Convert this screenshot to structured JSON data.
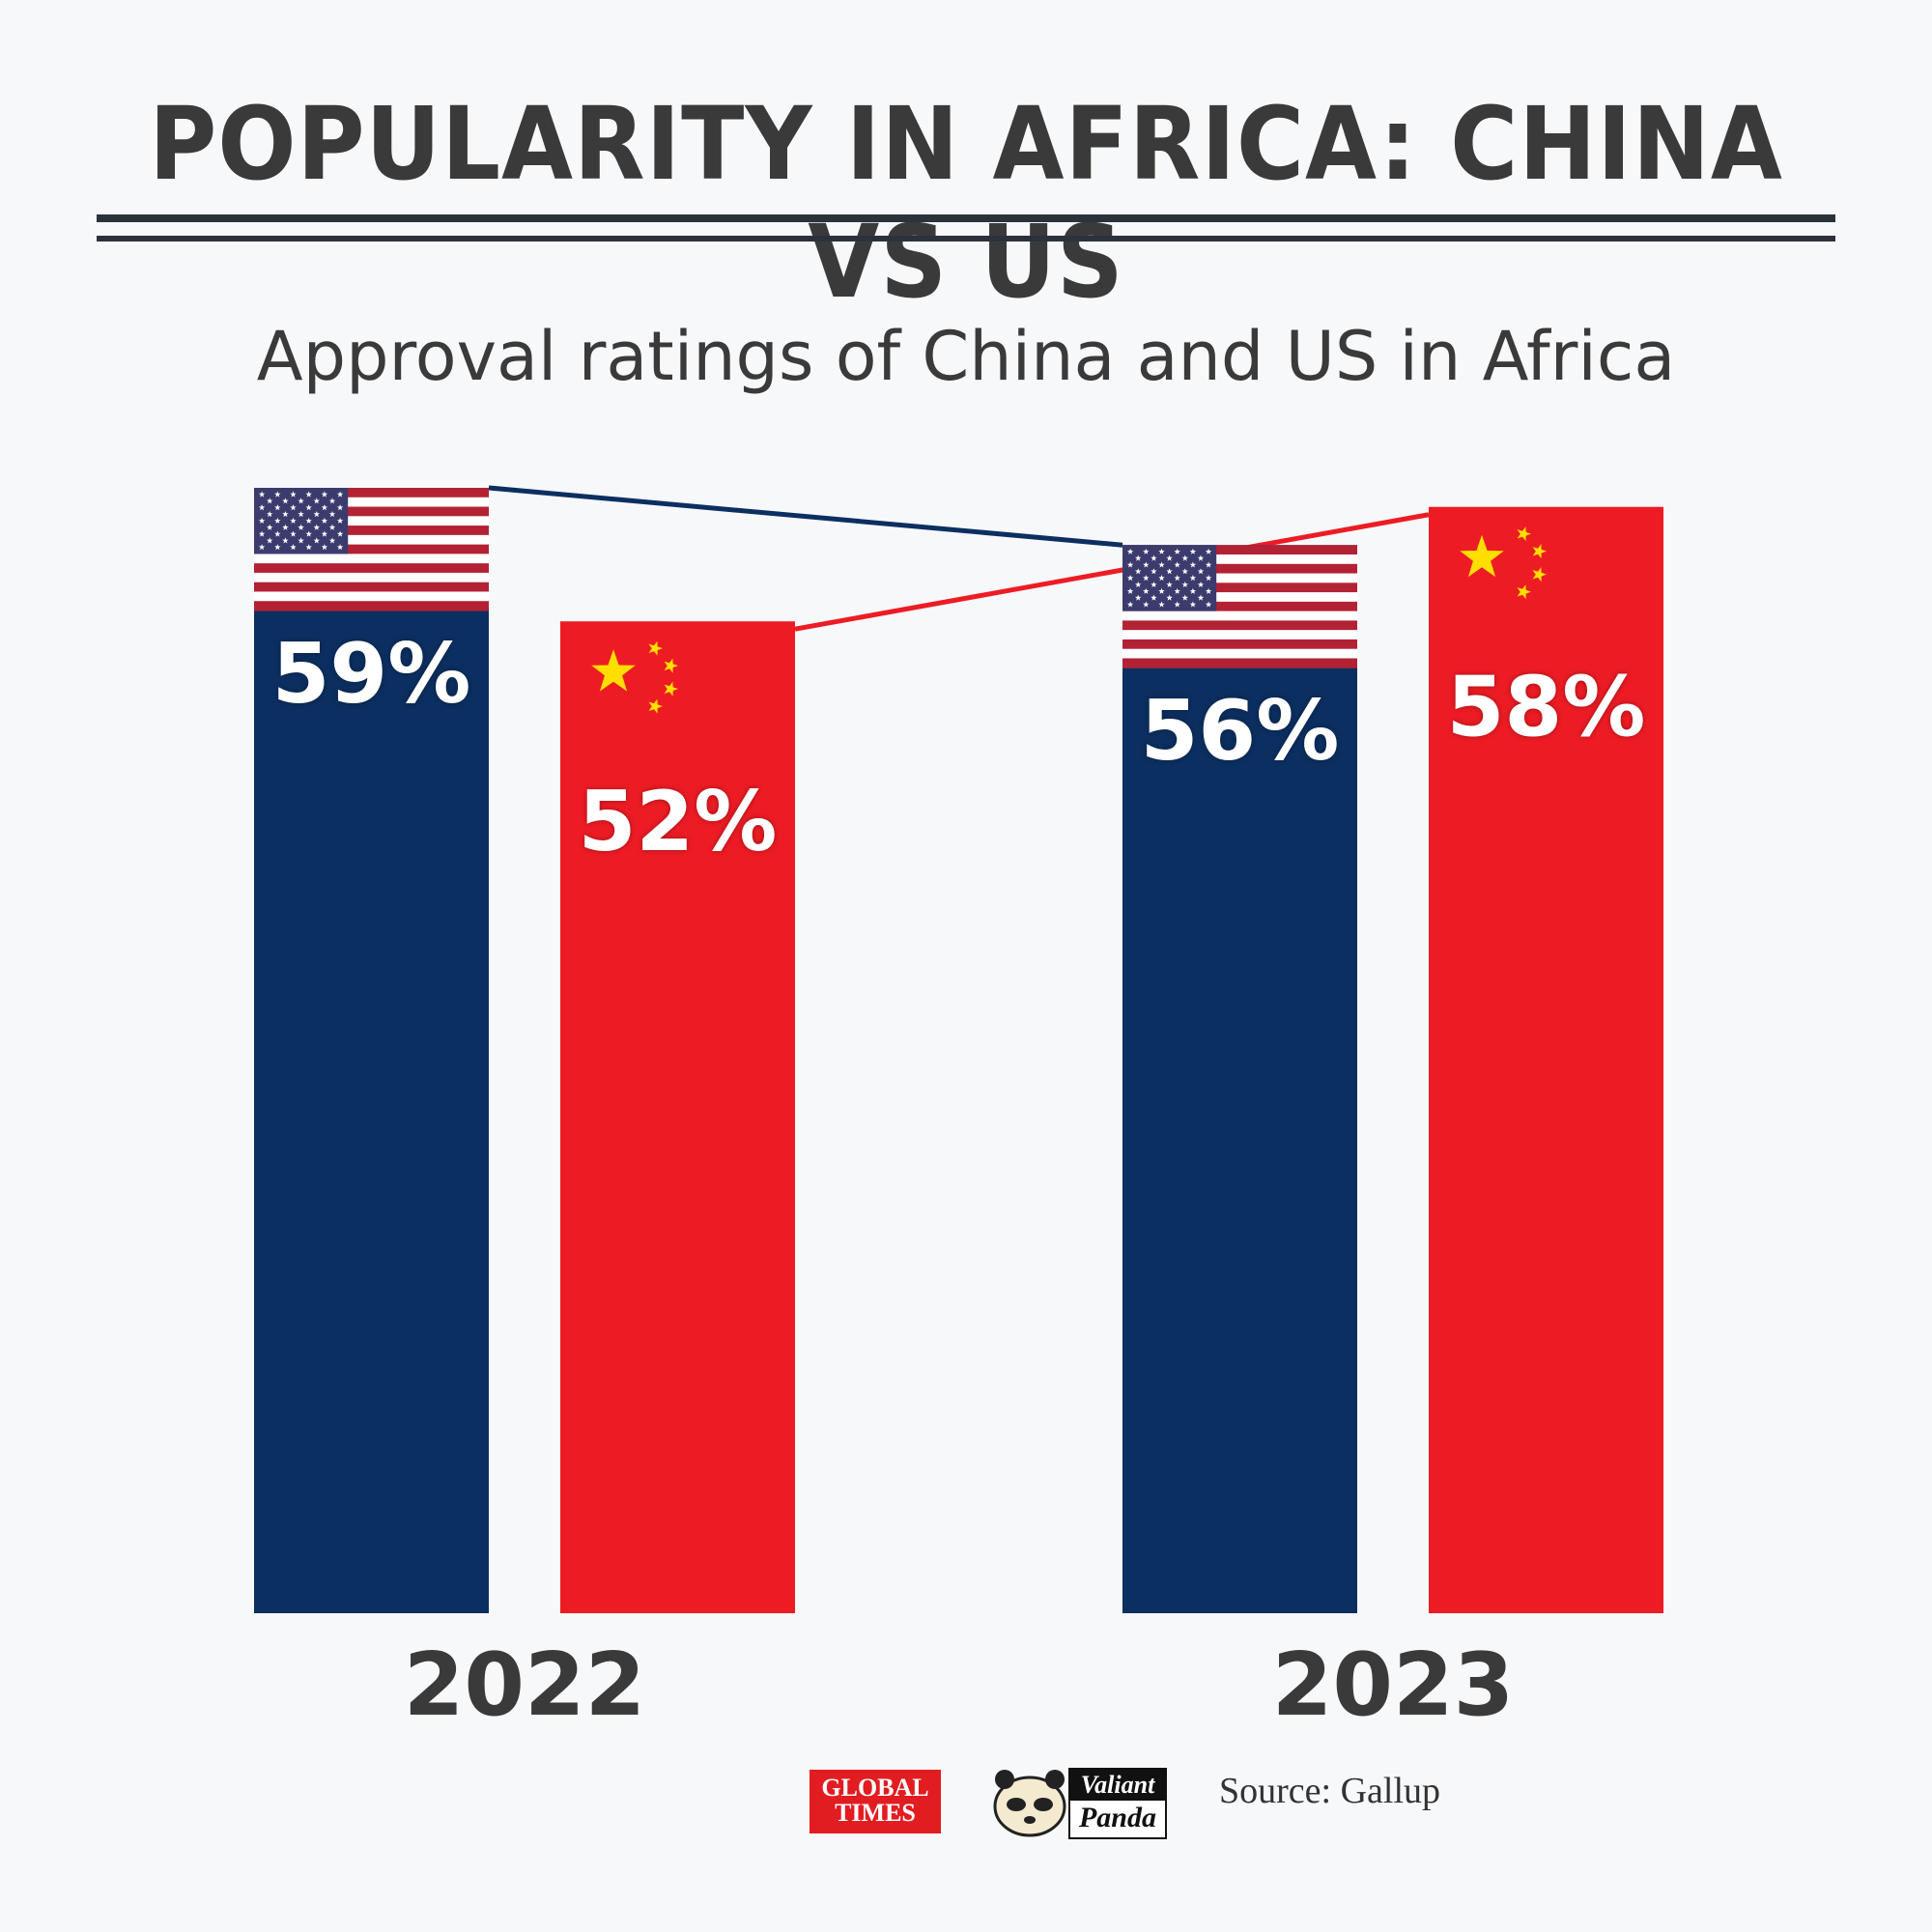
{
  "header": {
    "title": "POPULARITY IN AFRICA: CHINA VS US"
  },
  "chart_data": {
    "type": "bar",
    "title": "Approval ratings of China and US in Africa",
    "categories": [
      "2022",
      "2023"
    ],
    "series": [
      {
        "name": "US",
        "values": [
          59,
          56
        ],
        "labels": [
          "59%",
          "56%"
        ],
        "color": "#0c2f61"
      },
      {
        "name": "China",
        "values": [
          52,
          58
        ],
        "labels": [
          "52%",
          "58%"
        ],
        "color": "#ed1c24"
      }
    ],
    "unit": "%",
    "ylim": [
      0,
      59
    ],
    "xlabel": "",
    "ylabel": "",
    "legend": "none",
    "grid": false,
    "connector_colors": {
      "US": "#0c2f61",
      "China": "#ed1c24"
    }
  },
  "footer": {
    "source": "Source: Gallup",
    "logo_global_times_line1": "GLOBAL",
    "logo_global_times_line2": "TIMES",
    "logo_valiant": "Valiant",
    "logo_panda": "Panda"
  },
  "colors": {
    "background": "#f7f8fa",
    "text": "#3a3a3a",
    "flag_red": "#b22234",
    "flag_blue": "#3c3b6e",
    "star_yellow": "#ffde00"
  }
}
